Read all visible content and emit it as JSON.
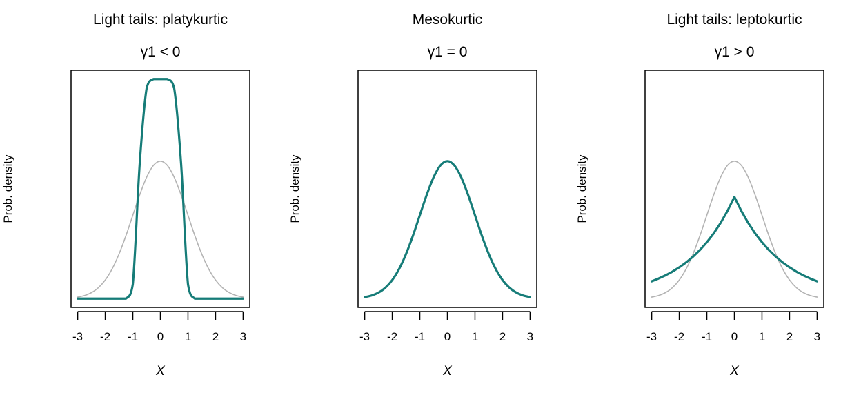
{
  "chart_data": [
    {
      "type": "line",
      "title": "Light tails: platykurtic",
      "subtitle": "γ1 < 0",
      "xlabel": "X",
      "ylabel": "Prob. density",
      "xlim": [
        -3,
        3
      ],
      "ylim": [
        0,
        0.637
      ],
      "xticks": [
        "-3",
        "-2",
        "-1",
        "0",
        "1",
        "2",
        "3"
      ],
      "yticks": [],
      "x": [
        0,
        0.25,
        0.5,
        0.75,
        1,
        1.25,
        1.5,
        1.75,
        2,
        2.25,
        2.5,
        2.75,
        3
      ],
      "symmetric": true,
      "series": [
        {
          "role": "reference normal",
          "color": "#B3B3B3",
          "values": [
            0.3989,
            0.3867,
            0.3521,
            0.3011,
            0.242,
            0.1826,
            0.1295,
            0.0863,
            0.054,
            0.0317,
            0.0175,
            0.0091,
            0.0044
          ]
        },
        {
          "role": "distribution",
          "color": "#167C78",
          "values": [
            0.637,
            0.637,
            0.61,
            0.392,
            0.042,
            0.0,
            0.0,
            0.0,
            0.0,
            0.0,
            0.0,
            0.0,
            0.0
          ]
        }
      ]
    },
    {
      "type": "line",
      "title": "Mesokurtic",
      "subtitle": "γ1 = 0",
      "xlabel": "X",
      "ylabel": "Prob. density",
      "xlim": [
        -3,
        3
      ],
      "ylim": [
        0,
        0.637
      ],
      "xticks": [
        "-3",
        "-2",
        "-1",
        "0",
        "1",
        "2",
        "3"
      ],
      "yticks": [],
      "x": [
        0,
        0.25,
        0.5,
        0.75,
        1,
        1.25,
        1.5,
        1.75,
        2,
        2.25,
        2.5,
        2.75,
        3
      ],
      "symmetric": true,
      "series": [
        {
          "role": "distribution",
          "color": "#167C78",
          "values": [
            0.3989,
            0.3867,
            0.3521,
            0.3011,
            0.242,
            0.1826,
            0.1295,
            0.0863,
            0.054,
            0.0317,
            0.0175,
            0.0091,
            0.0044
          ]
        }
      ]
    },
    {
      "type": "line",
      "title": "Light tails: leptokurtic",
      "subtitle": "γ1 > 0",
      "xlabel": "X",
      "ylabel": "Prob. density",
      "xlim": [
        -3,
        3
      ],
      "ylim": [
        0,
        0.637
      ],
      "xticks": [
        "-3",
        "-2",
        "-1",
        "0",
        "1",
        "2",
        "3"
      ],
      "yticks": [],
      "x": [
        0,
        0.25,
        0.5,
        0.75,
        1,
        1.25,
        1.5,
        1.75,
        2,
        2.25,
        2.5,
        2.75,
        3
      ],
      "symmetric": true,
      "series": [
        {
          "role": "reference normal",
          "color": "#B3B3B3",
          "values": [
            0.3989,
            0.3867,
            0.3521,
            0.3011,
            0.242,
            0.1826,
            0.1295,
            0.0863,
            0.054,
            0.0317,
            0.0175,
            0.0091,
            0.0044
          ]
        },
        {
          "role": "distribution",
          "color": "#167C78",
          "values": [
            0.295,
            0.2546,
            0.2197,
            0.1895,
            0.1636,
            0.1411,
            0.1218,
            0.1051,
            0.0907,
            0.0782,
            0.0675,
            0.0583,
            0.0503
          ]
        }
      ]
    }
  ]
}
